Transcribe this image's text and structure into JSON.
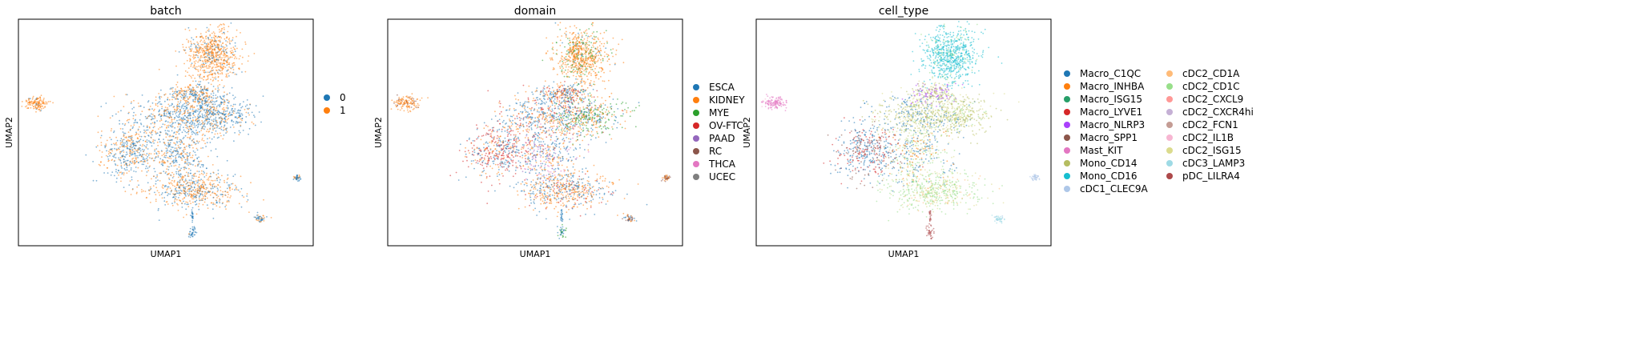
{
  "chart_data": [
    {
      "type": "scatter",
      "title": "batch",
      "xlabel": "UMAP1",
      "ylabel": "UMAP2",
      "grid": false,
      "legend": "right",
      "series": [
        {
          "name": "0",
          "color": "#1f77b4"
        },
        {
          "name": "1",
          "color": "#ff7f0e"
        }
      ]
    },
    {
      "type": "scatter",
      "title": "domain",
      "xlabel": "UMAP1",
      "ylabel": "UMAP2",
      "grid": false,
      "legend": "right",
      "series": [
        {
          "name": "ESCA",
          "color": "#1f77b4"
        },
        {
          "name": "KIDNEY",
          "color": "#ff7f0e"
        },
        {
          "name": "MYE",
          "color": "#2ca02c"
        },
        {
          "name": "OV-FTC",
          "color": "#d62728"
        },
        {
          "name": "PAAD",
          "color": "#9467bd"
        },
        {
          "name": "RC",
          "color": "#8c564b"
        },
        {
          "name": "THCA",
          "color": "#e377c2"
        },
        {
          "name": "UCEC",
          "color": "#7f7f7f"
        }
      ]
    },
    {
      "type": "scatter",
      "title": "cell_type",
      "xlabel": "UMAP1",
      "ylabel": "UMAP2",
      "grid": false,
      "legend": "right",
      "series": [
        {
          "name": "Macro_C1QC",
          "color": "#1f77b4"
        },
        {
          "name": "Macro_INHBA",
          "color": "#ff7f0e"
        },
        {
          "name": "Macro_ISG15",
          "color": "#279e68"
        },
        {
          "name": "Macro_LYVE1",
          "color": "#d62728"
        },
        {
          "name": "Macro_NLRP3",
          "color": "#aa40fc"
        },
        {
          "name": "Macro_SPP1",
          "color": "#8c564b"
        },
        {
          "name": "Mast_KIT",
          "color": "#e377c2"
        },
        {
          "name": "Mono_CD14",
          "color": "#b5bd61"
        },
        {
          "name": "Mono_CD16",
          "color": "#17becf"
        },
        {
          "name": "cDC1_CLEC9A",
          "color": "#aec7e8"
        },
        {
          "name": "cDC2_CD1A",
          "color": "#ffbb78"
        },
        {
          "name": "cDC2_CD1C",
          "color": "#98df8a"
        },
        {
          "name": "cDC2_CXCL9",
          "color": "#ff9896"
        },
        {
          "name": "cDC2_CXCR4hi",
          "color": "#c5b0d5"
        },
        {
          "name": "cDC2_FCN1",
          "color": "#c49c94"
        },
        {
          "name": "cDC2_IL1B",
          "color": "#f7b6d2"
        },
        {
          "name": "cDC2_ISG15",
          "color": "#dbdb8d"
        },
        {
          "name": "cDC3_LAMP3",
          "color": "#9edae5"
        },
        {
          "name": "pDC_LILRA4",
          "color": "#ad494a"
        }
      ]
    }
  ]
}
